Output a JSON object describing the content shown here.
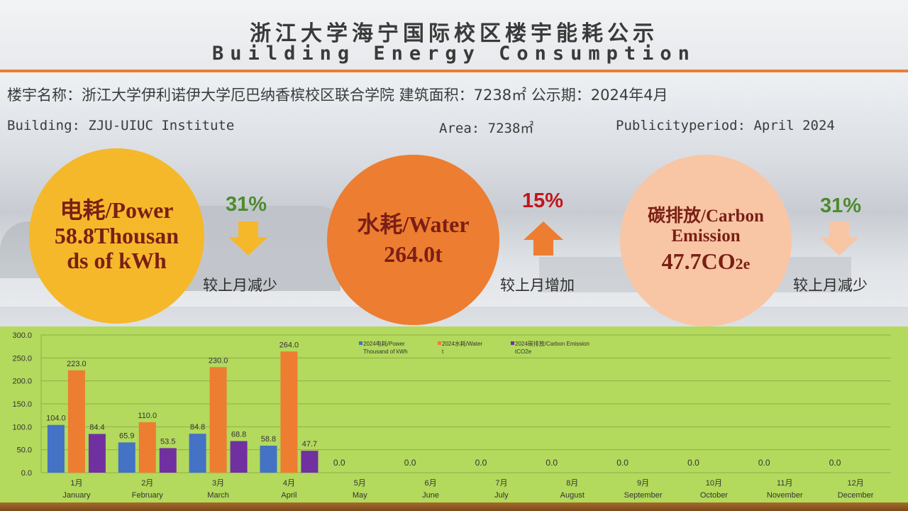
{
  "header": {
    "title_cn": "浙江大学海宁国际校区楼宇能耗公示",
    "title_en": "Building Energy Consumption"
  },
  "info": {
    "line_cn": "楼宇名称：浙江大学伊利诺伊大学厄巴纳香槟校区联合学院    建筑面积：7238㎡  公示期：2024年4月",
    "building_en": "Building: ZJU-UIUC Institute",
    "area_en": "Area: 7238㎡",
    "period_en": "Publicityperiod:  April 2024"
  },
  "metrics": {
    "power": {
      "line1": "电耗/Power",
      "line2": "58.8Thousan",
      "line3": "ds of kWh",
      "change": "31%",
      "note": "较上月减少",
      "direction": "down",
      "color": "#f5b82b"
    },
    "water": {
      "line1": "水耗/Water",
      "line2": "264.0t",
      "change": "15%",
      "note": "较上月增加",
      "direction": "up",
      "color": "#ed7d31"
    },
    "carbon": {
      "line1": "碳排放/Carbon",
      "line2": "Emission",
      "line3_main": "47.7CO",
      "line3_sub": "2e",
      "change": "31%",
      "note": "较上月减少",
      "direction": "down",
      "color": "#f8c6a5"
    }
  },
  "colors": {
    "decrease": "#4e8a2e",
    "increase": "#c0151b",
    "arrow_power": "#f5b82b",
    "arrow_water": "#ed7d31",
    "arrow_carbon": "#f8c6a5",
    "chart_bg": "#b3d95d"
  },
  "chart_data": {
    "type": "bar",
    "categories_cn": [
      "1月",
      "2月",
      "3月",
      "4月",
      "5月",
      "6月",
      "7月",
      "8月",
      "9月",
      "10月",
      "11月",
      "12月"
    ],
    "categories_en": [
      "January",
      "February",
      "March",
      "April",
      "May",
      "June",
      "July",
      "August",
      "September",
      "October",
      "November",
      "December"
    ],
    "series": [
      {
        "name": "2024电耗/Power",
        "unit": "Thousand of kWh",
        "color": "#4472c4",
        "values": [
          104.0,
          65.9,
          84.8,
          58.8,
          0.0,
          0.0,
          0.0,
          0.0,
          0.0,
          0.0,
          0.0,
          0.0
        ]
      },
      {
        "name": "2024水耗/Water",
        "unit": "t",
        "color": "#ed7d31",
        "values": [
          223.0,
          110.0,
          230.0,
          264.0,
          null,
          null,
          null,
          null,
          null,
          null,
          null,
          null
        ]
      },
      {
        "name": "2024碳排放/Carbon Emission",
        "unit": "tCO2e",
        "color": "#7030a0",
        "values": [
          84.4,
          53.5,
          68.8,
          47.7,
          null,
          null,
          null,
          null,
          null,
          null,
          null,
          null
        ]
      }
    ],
    "yticks": [
      "0.0",
      "50.0",
      "100.0",
      "150.0",
      "200.0",
      "250.0",
      "300.0"
    ],
    "ylim": [
      0,
      300
    ],
    "grid": true,
    "legend": "top-center"
  }
}
